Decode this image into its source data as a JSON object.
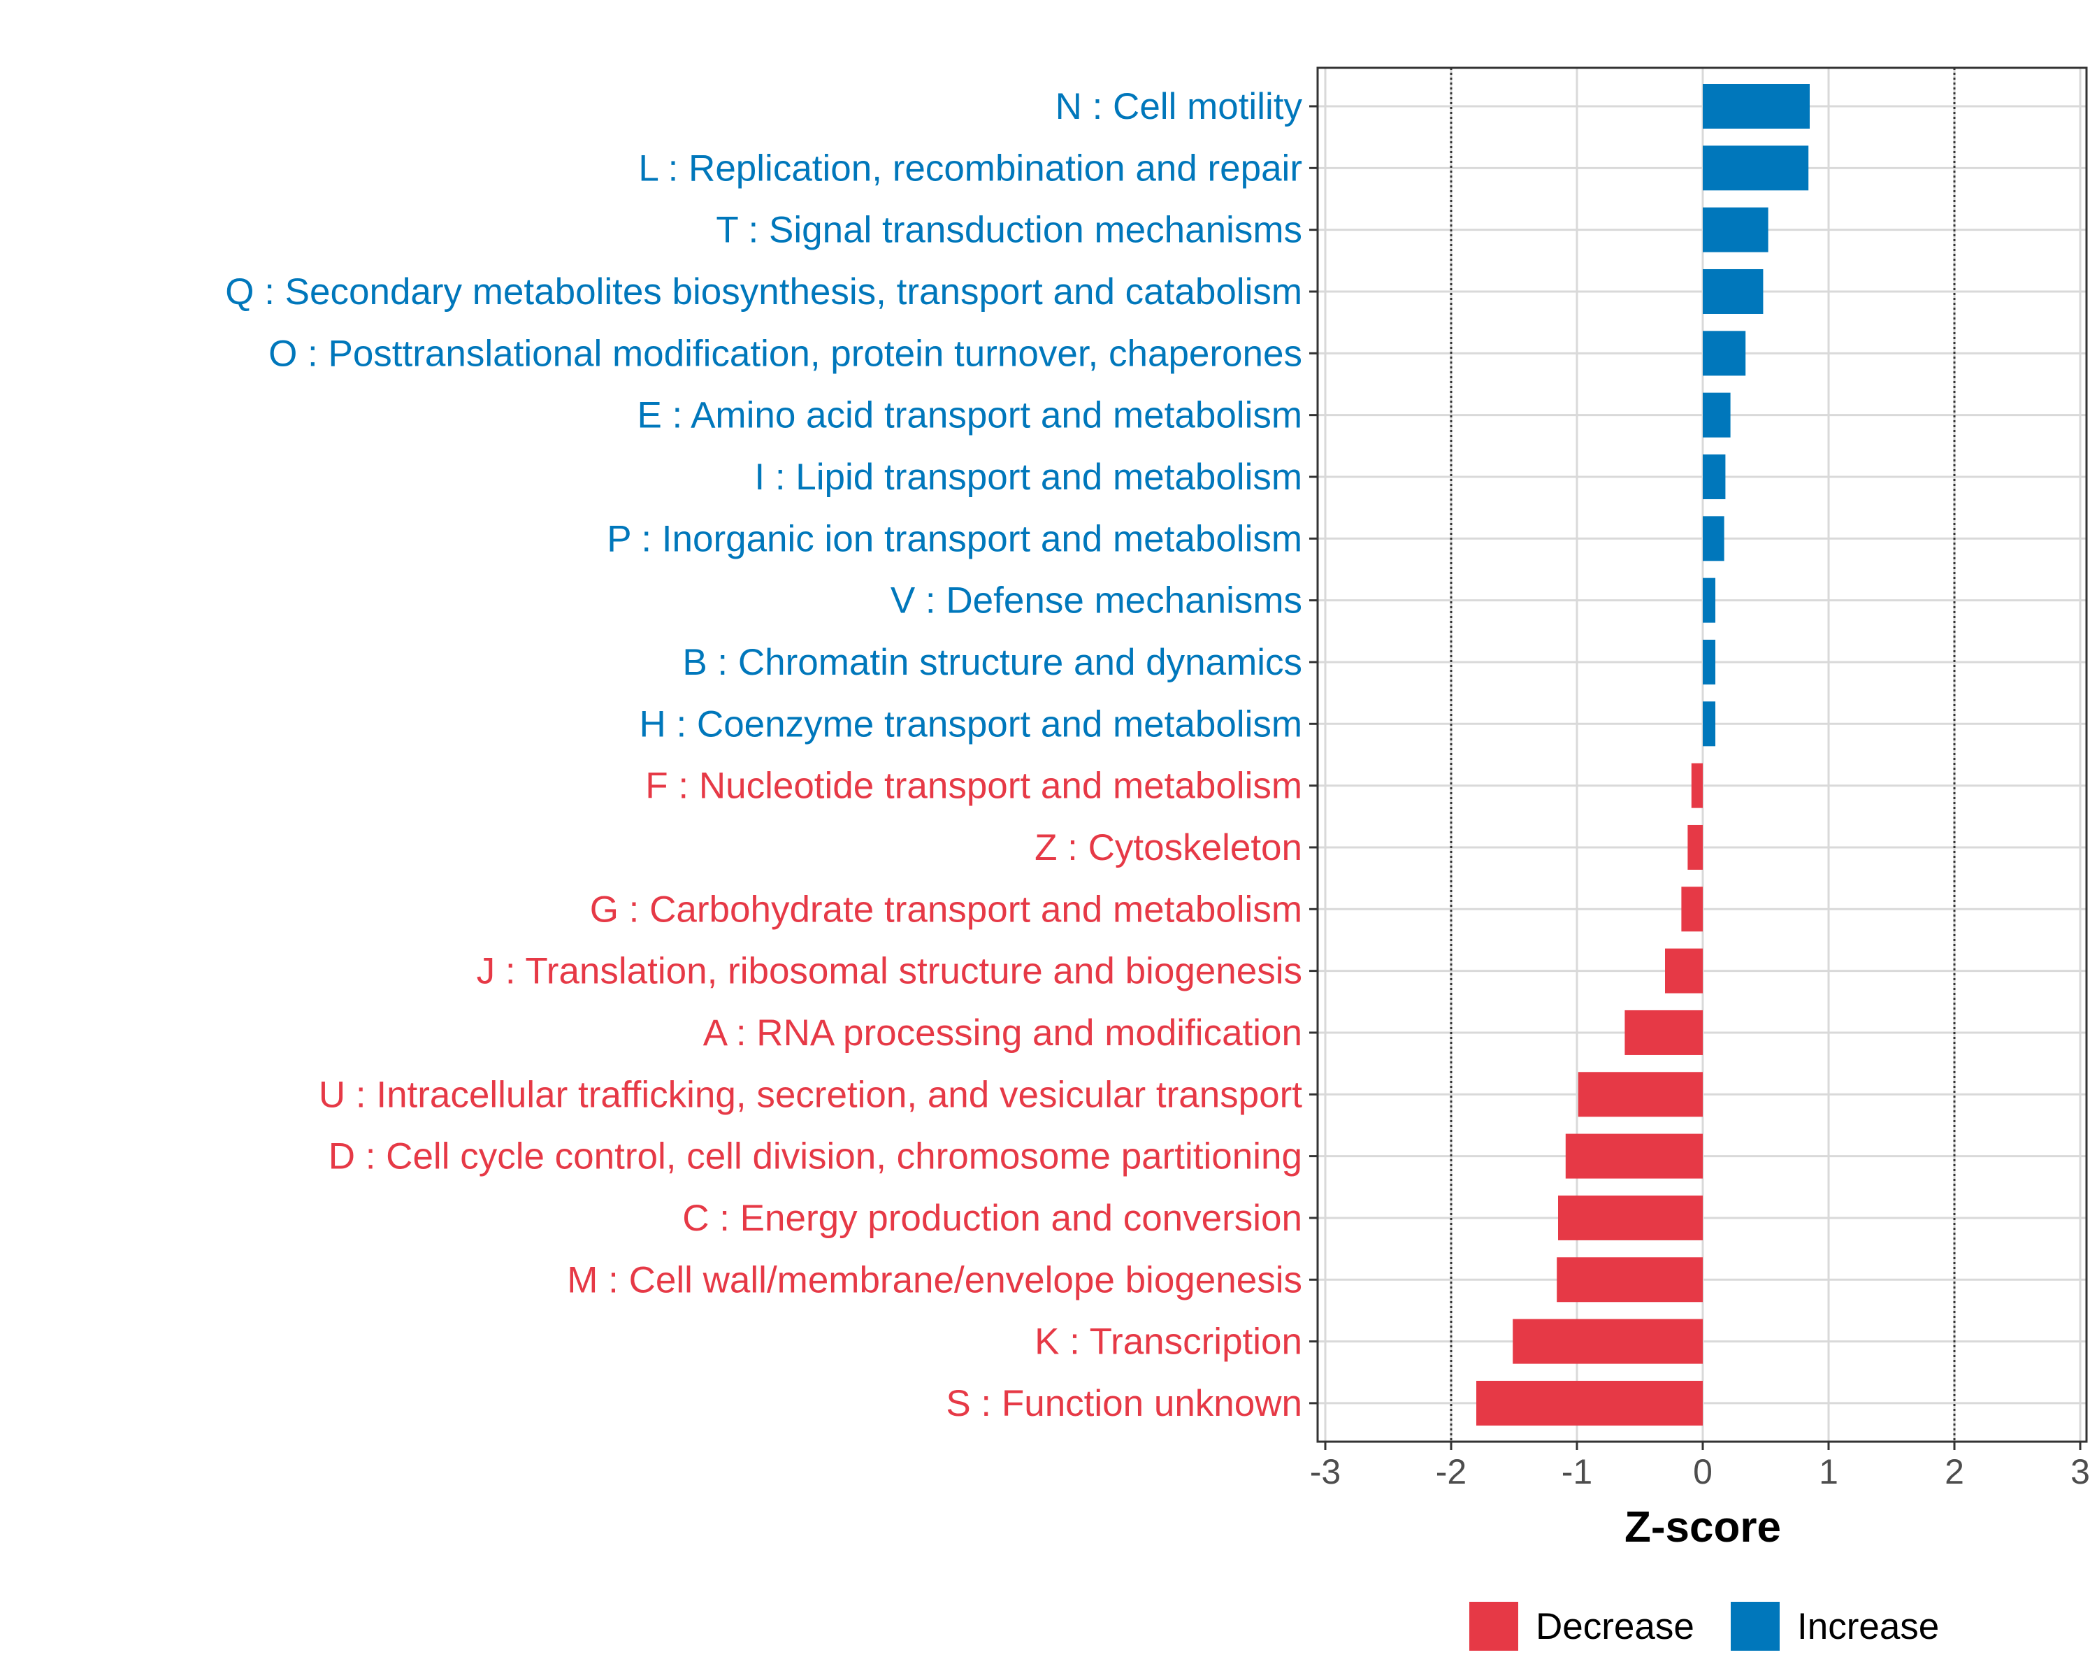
{
  "chart_data": {
    "type": "bar",
    "orientation": "horizontal",
    "xlabel": "Z-score",
    "xlim": [
      -3,
      3
    ],
    "xticks": [
      "-3",
      "-2",
      "-1",
      "0",
      "1",
      "2",
      "3"
    ],
    "reference_lines": [
      -2,
      2
    ],
    "categories": [
      "N : Cell motility",
      "L : Replication, recombination and repair",
      "T : Signal transduction mechanisms",
      "Q : Secondary metabolites biosynthesis, transport and catabolism",
      "O : Posttranslational modification, protein turnover, chaperones",
      "E : Amino acid transport and metabolism",
      "I : Lipid transport and metabolism",
      "P : Inorganic ion transport and metabolism",
      "V : Defense mechanisms",
      "B : Chromatin structure and dynamics",
      "H : Coenzyme transport and metabolism",
      "F : Nucleotide transport and metabolism",
      "Z : Cytoskeleton",
      "G : Carbohydrate transport and metabolism",
      "J : Translation, ribosomal structure and biogenesis",
      "A : RNA processing and modification",
      "U : Intracellular trafficking, secretion, and vesicular transport",
      "D : Cell cycle control, cell division, chromosome partitioning",
      "C : Energy production and conversion",
      "M : Cell wall/membrane/envelope biogenesis",
      "K : Transcription",
      "S : Function unknown"
    ],
    "values": [
      0.85,
      0.84,
      0.52,
      0.48,
      0.34,
      0.22,
      0.18,
      0.17,
      0.1,
      0.1,
      0.1,
      -0.09,
      -0.12,
      -0.17,
      -0.3,
      -0.62,
      -0.99,
      -1.09,
      -1.15,
      -1.16,
      -1.51,
      -1.8
    ],
    "groups": [
      "Increase",
      "Increase",
      "Increase",
      "Increase",
      "Increase",
      "Increase",
      "Increase",
      "Increase",
      "Increase",
      "Increase",
      "Increase",
      "Decrease",
      "Decrease",
      "Decrease",
      "Decrease",
      "Decrease",
      "Decrease",
      "Decrease",
      "Decrease",
      "Decrease",
      "Decrease",
      "Decrease"
    ],
    "legend": {
      "position": "bottom",
      "entries": [
        {
          "label": "Decrease",
          "color": "#E63946"
        },
        {
          "label": "Increase",
          "color": "#0077BB"
        }
      ]
    },
    "colors": {
      "Decrease": "#E63946",
      "Increase": "#0077BB"
    },
    "grid": true
  }
}
